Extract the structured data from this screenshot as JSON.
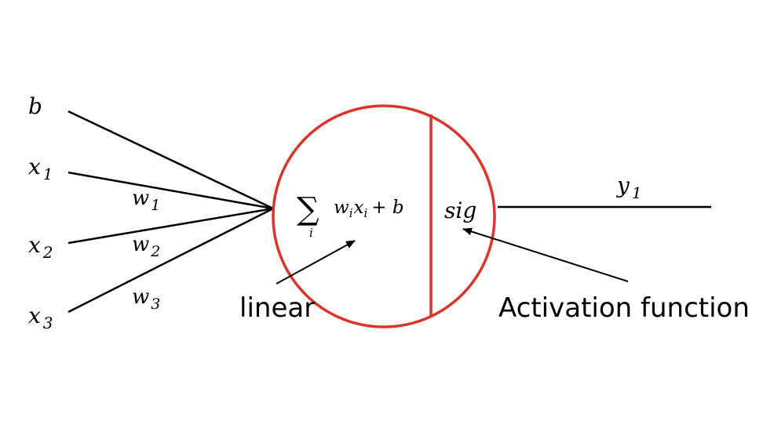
{
  "inputs": [
    {
      "var": "b",
      "sub": ""
    },
    {
      "var": "x",
      "sub": "1"
    },
    {
      "var": "x",
      "sub": "2"
    },
    {
      "var": "x",
      "sub": "3"
    }
  ],
  "weights": [
    {
      "var": "w",
      "sub": "1"
    },
    {
      "var": "w",
      "sub": "2"
    },
    {
      "var": "w",
      "sub": "3"
    }
  ],
  "neuron": {
    "sum_symbol": "∑",
    "sum_index": "i",
    "formula_w": "w",
    "formula_w_sub": "i",
    "formula_x": "x",
    "formula_x_sub": "i",
    "formula_tail": "+ b",
    "activation_symbol": "sig",
    "ring_color": "#d9352b"
  },
  "output": {
    "var": "y",
    "sub": "1"
  },
  "annotations": {
    "linear": "linear",
    "activation": "Activation function"
  }
}
